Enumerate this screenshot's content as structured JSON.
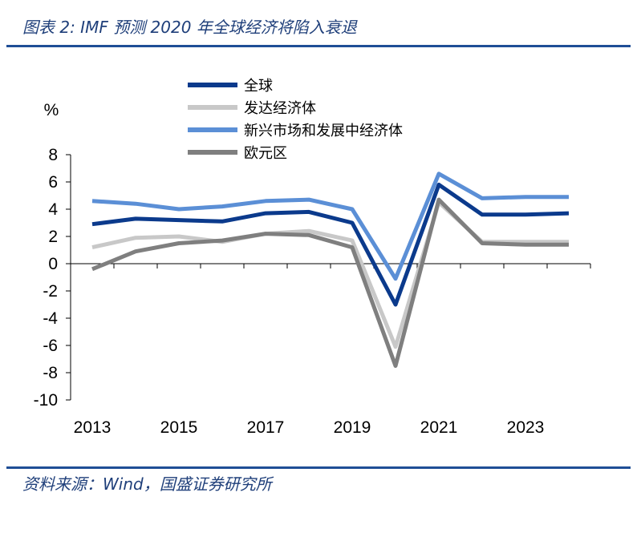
{
  "figure_title": "图表 2:  IMF 预测 2020 年全球经济将陷入衰退",
  "source_note": "资料来源：Wind，国盛证券研究所",
  "colors": {
    "rule": "#1f4e96",
    "全球": "#0b3a8c",
    "发达经济体": "#c8c8c8",
    "新兴市场和发展中经济体": "#5b8fd6",
    "欧元区": "#7f7f7f"
  },
  "chart_data": {
    "type": "line",
    "ylabel": "%",
    "ylim": [
      -10,
      8
    ],
    "yticks": [
      8,
      6,
      4,
      2,
      0,
      -2,
      -4,
      -6,
      -8,
      -10
    ],
    "xlim": [
      2012.5,
      2024.5
    ],
    "xticks": [
      2013,
      2015,
      2017,
      2019,
      2021,
      2023
    ],
    "x": [
      2013,
      2014,
      2015,
      2016,
      2017,
      2018,
      2019,
      2020,
      2021,
      2022,
      2023,
      2024
    ],
    "legend_position": "top-left",
    "grid": false,
    "series": [
      {
        "name": "全球",
        "color": "#0b3a8c",
        "values": [
          2.9,
          3.3,
          3.2,
          3.1,
          3.7,
          3.8,
          3.0,
          -3.0,
          5.8,
          3.6,
          3.6,
          3.7
        ]
      },
      {
        "name": "发达经济体",
        "color": "#c8c8c8",
        "values": [
          1.2,
          1.9,
          2.0,
          1.6,
          2.2,
          2.4,
          1.7,
          -6.1,
          4.5,
          1.6,
          1.6,
          1.6
        ]
      },
      {
        "name": "新兴市场和发展中经济体",
        "color": "#5b8fd6",
        "values": [
          4.6,
          4.4,
          4.0,
          4.2,
          4.6,
          4.7,
          4.0,
          -1.1,
          6.6,
          4.8,
          4.9,
          4.9
        ]
      },
      {
        "name": "欧元区",
        "color": "#7f7f7f",
        "values": [
          -0.4,
          0.9,
          1.5,
          1.7,
          2.2,
          2.1,
          1.2,
          -7.5,
          4.7,
          1.5,
          1.4,
          1.4
        ]
      }
    ]
  }
}
